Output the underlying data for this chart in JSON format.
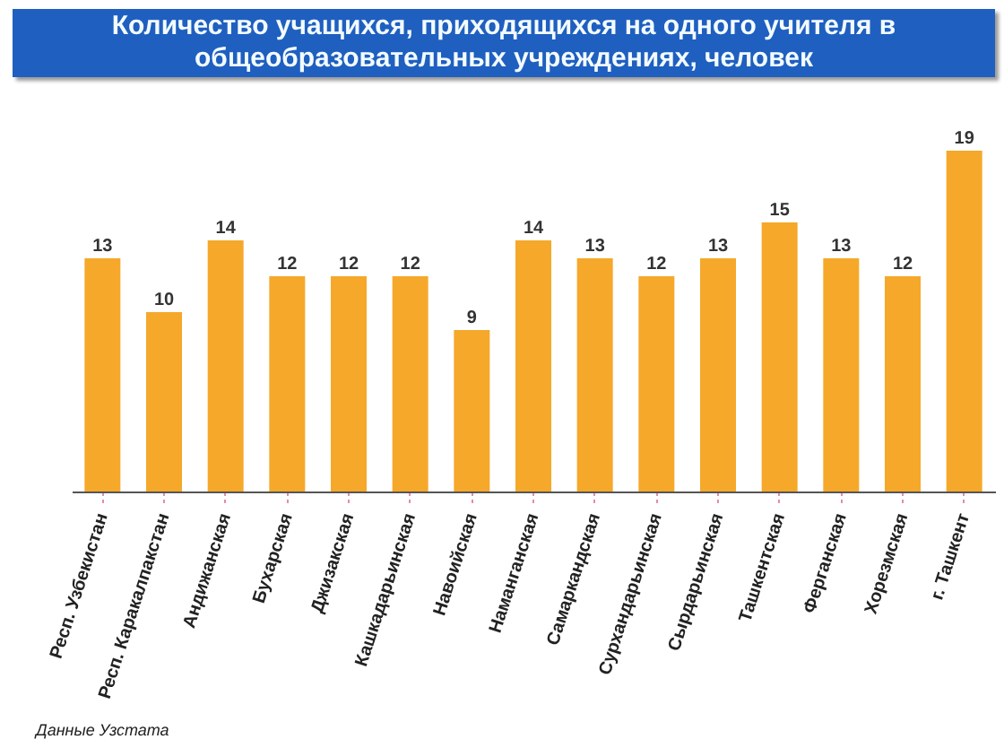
{
  "chart_data": {
    "type": "bar",
    "title": "Количество учащихся, приходящихся на одного учителя в общеобразовательных учреждениях, человек",
    "categories": [
      "Респ. Узбекистан",
      "Респ. Каракалпакстан",
      "Андижанская",
      "Бухарская",
      "Джизакская",
      "Кашкадарьинская",
      "Навоийская",
      "Наманганская",
      "Самаркандская",
      "Сурхандарьинская",
      "Сырдарьинская",
      "Ташкентская",
      "Ферганская",
      "Хорезмская",
      "г. Ташкент"
    ],
    "values": [
      13,
      10,
      14,
      12,
      12,
      12,
      9,
      14,
      13,
      12,
      13,
      15,
      13,
      12,
      19
    ],
    "color": "#f5a82a",
    "data_labels": true,
    "annotations": [
      "Данные Узстата"
    ]
  }
}
